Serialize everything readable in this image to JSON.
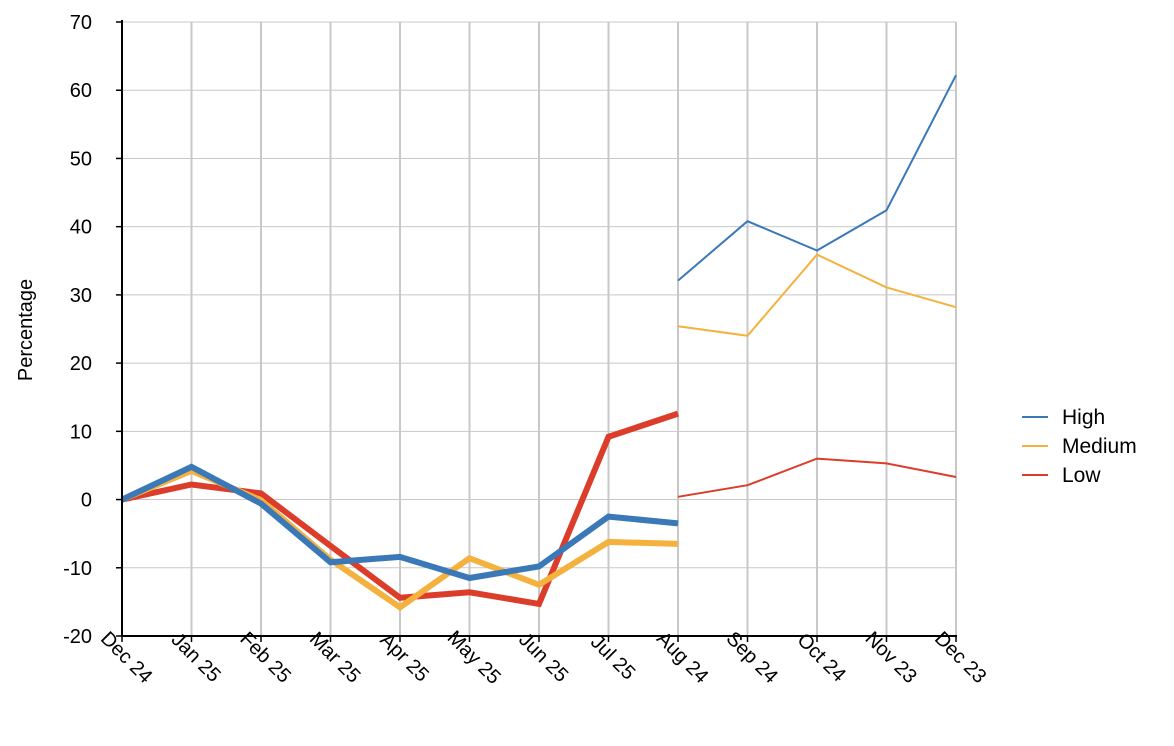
{
  "chart_data": {
    "type": "line",
    "ylabel": "Percentage",
    "ylim": [
      -20,
      70
    ],
    "yticks": [
      -20,
      -10,
      0,
      10,
      20,
      30,
      40,
      50,
      60,
      70
    ],
    "grid": true,
    "legend_position": "right",
    "categories": [
      "Dec 24",
      "Jan 25",
      "Feb 25",
      "Mar 25",
      "Apr 25",
      "May 25",
      "Jun 25",
      "Jul 25",
      "Aug 24",
      "Sep 24",
      "Oct 24",
      "Nov 23",
      "Dec 23"
    ],
    "legend": [
      {
        "name": "High",
        "color": "#3a78b8"
      },
      {
        "name": "Medium",
        "color": "#f4b13d"
      },
      {
        "name": "Low",
        "color": "#db3d2a"
      }
    ],
    "segments": [
      {
        "weight": "thick",
        "categories": [
          "Dec 24",
          "Jan 25",
          "Feb 25",
          "Mar 25",
          "Apr 25",
          "May 25",
          "Jun 25",
          "Jul 25",
          "Aug 24"
        ],
        "series": [
          {
            "color": "#db3d2a",
            "values": [
              0,
              2.2,
              0.9,
              -6.8,
              -14.4,
              -13.6,
              -15.3,
              9.2,
              12.6
            ]
          },
          {
            "color": "#f4b13d",
            "values": [
              0,
              4.2,
              -0.1,
              -8.8,
              -15.8,
              -8.6,
              -12.5,
              -6.2,
              -6.5
            ]
          },
          {
            "color": "#3a78b8",
            "values": [
              0,
              4.8,
              -0.6,
              -9.2,
              -8.4,
              -11.5,
              -9.8,
              -2.5,
              -3.5
            ]
          }
        ]
      },
      {
        "weight": "thin",
        "categories": [
          "Aug 24",
          "Sep 24",
          "Oct 24",
          "Nov 23",
          "Dec 23"
        ],
        "series": [
          {
            "color": "#3a78b8",
            "values": [
              32.1,
              40.8,
              36.5,
              42.4,
              62.2
            ]
          },
          {
            "color": "#f4b13d",
            "values": [
              25.4,
              24.0,
              35.9,
              31.1,
              28.2
            ]
          },
          {
            "color": "#db3d2a",
            "values": [
              0.4,
              2.1,
              6.0,
              5.3,
              3.3
            ]
          }
        ]
      }
    ]
  }
}
